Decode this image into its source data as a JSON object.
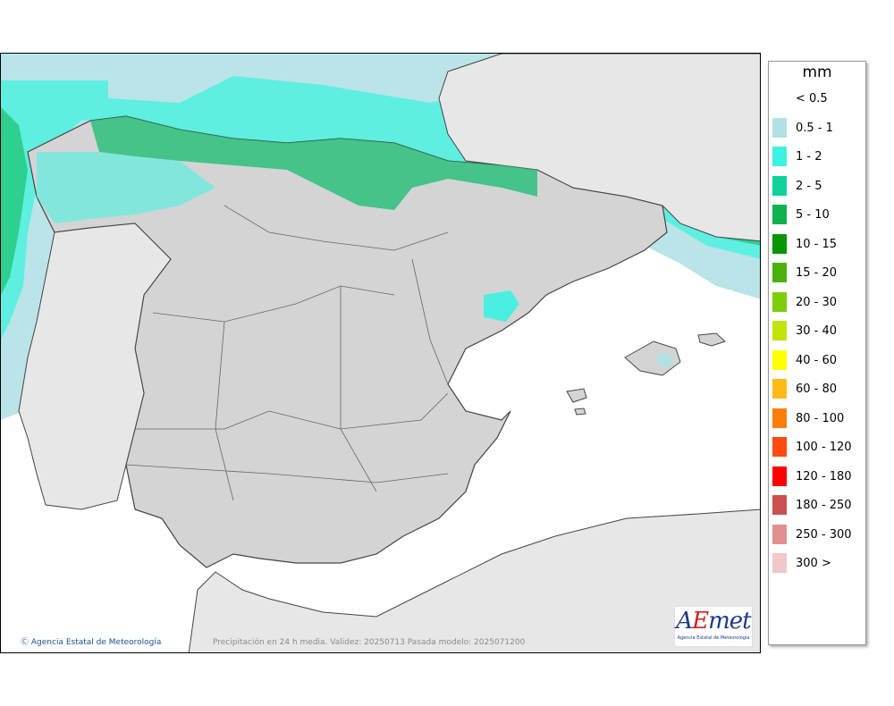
{
  "legend": {
    "unit": "mm",
    "items": [
      {
        "label": "< 0.5",
        "color": "#ffffff"
      },
      {
        "label": "0.5 - 1",
        "color": "#b2e1e4"
      },
      {
        "label": "1 - 2",
        "color": "#3cf2e0"
      },
      {
        "label": "2 - 5",
        "color": "#0fd29a"
      },
      {
        "label": "5 - 10",
        "color": "#0eb24e"
      },
      {
        "label": "10 - 15",
        "color": "#069606"
      },
      {
        "label": "15 - 20",
        "color": "#49b20f"
      },
      {
        "label": "20 - 30",
        "color": "#7ccd0a"
      },
      {
        "label": "30 - 40",
        "color": "#c2e40c"
      },
      {
        "label": "40 - 60",
        "color": "#ffff00"
      },
      {
        "label": "60 - 80",
        "color": "#ffba18"
      },
      {
        "label": "80 - 100",
        "color": "#ff7e0a"
      },
      {
        "label": "100 - 120",
        "color": "#ff4a10"
      },
      {
        "label": "120 - 180",
        "color": "#ff0000"
      },
      {
        "label": "180 - 250",
        "color": "#cc5050"
      },
      {
        "label": "250 - 300",
        "color": "#e09090"
      },
      {
        "label": "300 >",
        "color": "#f0c8c8"
      }
    ]
  },
  "credit": "Agencia Estatal de Meteorología",
  "caption": "Precipitación en 24 h media. Validez: 20250713 Pasada modelo: 2025071200",
  "logo": {
    "word_a": "A",
    "word_e": "E",
    "word_rest": "met",
    "subtitle": "Agencia Estatal de Meteorología"
  },
  "colors": {
    "land": "#d4d4d4",
    "land_outside": "#e7e7e7",
    "sea": "#ffffff",
    "border": "#444444"
  }
}
